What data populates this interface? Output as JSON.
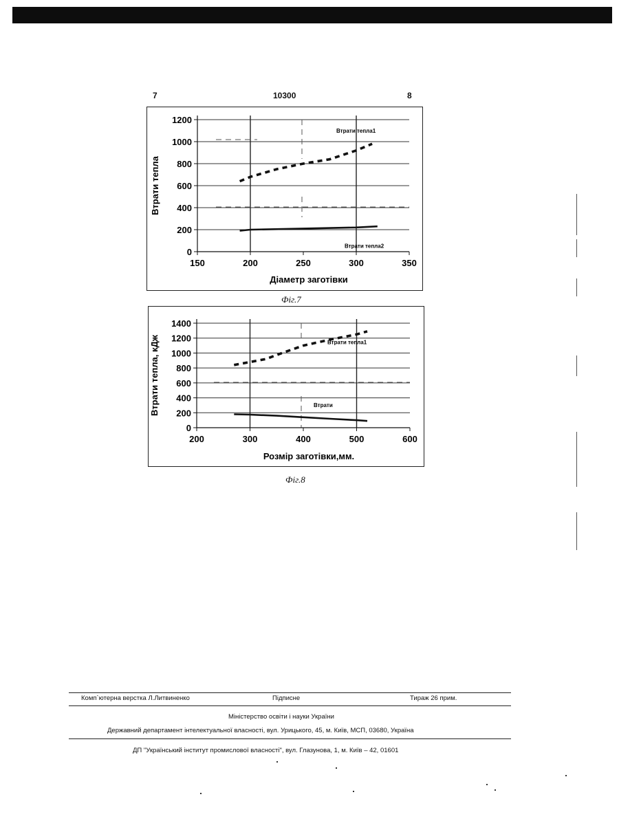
{
  "header": {
    "page_left": "7",
    "doc_number": "10300",
    "page_right": "8"
  },
  "chart_data": [
    {
      "type": "line",
      "xlabel": "Діаметр заготівки",
      "ylabel": "Втрати тепла",
      "xlim": [
        150,
        350
      ],
      "ylim": [
        0,
        1200
      ],
      "xticks": [
        150,
        200,
        250,
        300,
        350
      ],
      "yticks": [
        0,
        200,
        400,
        600,
        800,
        1000,
        1200
      ],
      "x_tick_labels": [
        "150",
        "200",
        "250",
        "300",
        "350"
      ],
      "y_tick_labels": [
        "0",
        "200",
        "400",
        "600",
        "800",
        "1000",
        "1200"
      ],
      "grid": true,
      "series": [
        {
          "name": "Втрати тепла1",
          "style": "dashed",
          "color": "#111111",
          "x": [
            190,
            200,
            225,
            250,
            275,
            300,
            315
          ],
          "y": [
            640,
            680,
            750,
            800,
            840,
            920,
            980
          ]
        },
        {
          "name": "Втрати тепла2",
          "style": "solid",
          "color": "#111111",
          "x": [
            190,
            200,
            250,
            300,
            320
          ],
          "y": [
            190,
            200,
            210,
            220,
            230
          ]
        }
      ]
    },
    {
      "type": "line",
      "xlabel": "Розмір заготівки,мм.",
      "ylabel": "Втрати тепла, кДж",
      "xlim": [
        200,
        600
      ],
      "ylim": [
        0,
        1400
      ],
      "xticks": [
        200,
        300,
        400,
        500,
        600
      ],
      "yticks": [
        0,
        200,
        400,
        600,
        800,
        1000,
        1200,
        1400
      ],
      "x_tick_labels": [
        "200",
        "300",
        "400",
        "500",
        "600"
      ],
      "y_tick_labels": [
        "0",
        "200",
        "400",
        "600",
        "800",
        "1000",
        "1200",
        "1400"
      ],
      "grid": true,
      "series": [
        {
          "name": "Втрати тепла1",
          "style": "dashed",
          "color": "#111111",
          "x": [
            270,
            300,
            330,
            360,
            400,
            450,
            500,
            520
          ],
          "y": [
            840,
            880,
            920,
            1000,
            1100,
            1180,
            1250,
            1290
          ]
        },
        {
          "name": "Втрати",
          "style": "solid",
          "color": "#111111",
          "x": [
            270,
            300,
            350,
            400,
            450,
            500,
            520
          ],
          "y": [
            180,
            175,
            160,
            140,
            120,
            100,
            90
          ]
        }
      ]
    }
  ],
  "captions": {
    "fig7": "Фіг.7",
    "fig8": "Фіг.8"
  },
  "imprint": {
    "typesetter": "Комп`ютерна верстка Л.Литвиненко",
    "signed": "Підписне",
    "circulation": "Тираж 26 прим.",
    "ministry": "Міністерство освіти і науки України",
    "department": "Державний департамент інтелектуальної власності, вул. Урицького, 45, м. Київ, МСП, 03680, Україна",
    "institute": "ДП \"Український інститут промислової власності\", вул. Глазунова, 1, м. Київ – 42, 01601"
  }
}
